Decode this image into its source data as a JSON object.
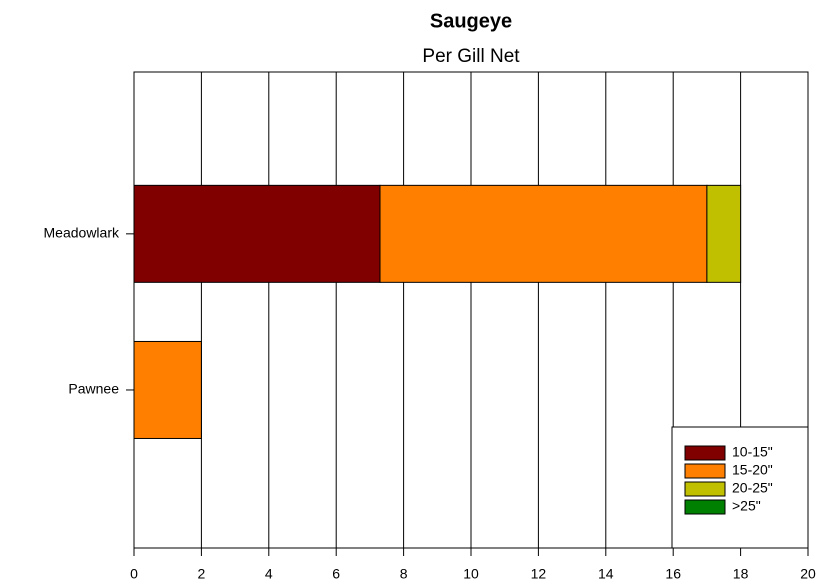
{
  "chart_data": {
    "type": "stacked-barh",
    "title": "Saugeye",
    "subtitle": "Per Gill Net",
    "categories": [
      "Meadowlark",
      "Pawnee"
    ],
    "series": [
      {
        "name": "10-15\"",
        "color": "#800000",
        "values": [
          7.3,
          0
        ]
      },
      {
        "name": "15-20\"",
        "color": "#ff8000",
        "values": [
          9.7,
          2
        ]
      },
      {
        "name": "20-25\"",
        "color": "#c0c000",
        "values": [
          1.0,
          0
        ]
      },
      {
        "name": ">25\"",
        "color": "#008000",
        "values": [
          0,
          0
        ]
      }
    ],
    "xlim": [
      0,
      20
    ],
    "xticks": [
      0,
      2,
      4,
      6,
      8,
      10,
      12,
      14,
      16,
      18,
      20
    ],
    "grid": true,
    "legend": "bottom-right"
  }
}
